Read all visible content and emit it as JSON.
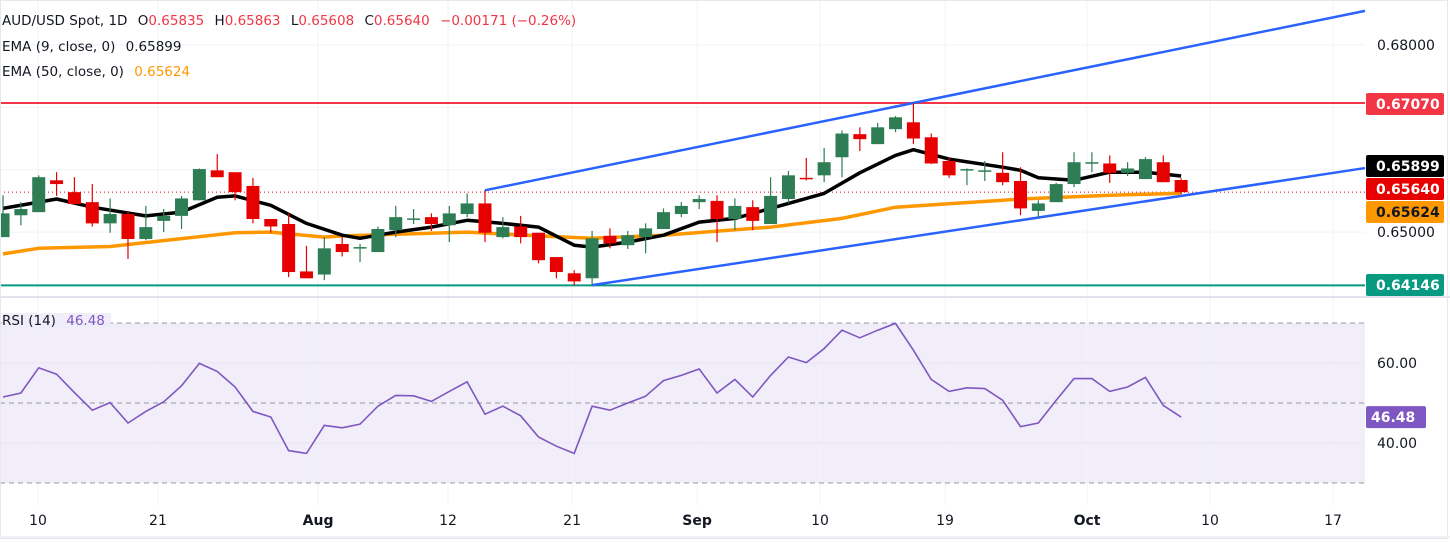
{
  "header": {
    "symbol": "AUD/USD Spot, 1D",
    "o_label": "O",
    "o": "0.65835",
    "h_label": "H",
    "h": "0.65863",
    "l_label": "L",
    "l": "0.65608",
    "c_label": "C",
    "c": "0.65640",
    "change": "−0.00171 (−0.26%)"
  },
  "ema9": {
    "label": "EMA (9, close, 0)",
    "value": "0.65899"
  },
  "ema50": {
    "label": "EMA (50, close, 0)",
    "value": "0.65624"
  },
  "rsi": {
    "label": "RSI (14)",
    "value": "46.48"
  },
  "colors": {
    "up": "#2e7d55",
    "down": "#e60000",
    "ema9": "#000000",
    "ema50": "#ff9800",
    "channel": "#2962ff",
    "resistance": "#f23645",
    "support": "#089981",
    "rsi": "#7e57c2",
    "grid": "#f0f3fa",
    "text": "#131722"
  },
  "chart_data": {
    "type": "candlestick",
    "title": "AUD/USD Spot, 1D",
    "x_range": [
      -0.17,
      76.3
    ],
    "ylim": [
      0.6396,
      0.6872
    ],
    "price_ticks": [
      {
        "label": "0.68000",
        "value": 0.68
      },
      {
        "label": "0.65000",
        "value": 0.65
      }
    ],
    "x_ticks": [
      {
        "label": "10",
        "pos": 1.96
      },
      {
        "label": "21",
        "pos": 8.68
      },
      {
        "label": "Aug",
        "pos": 17.65,
        "bold": true
      },
      {
        "label": "12",
        "pos": 24.93
      },
      {
        "label": "21",
        "pos": 31.88
      },
      {
        "label": "Sep",
        "pos": 38.88,
        "bold": true
      },
      {
        "label": "10",
        "pos": 45.77
      },
      {
        "label": "19",
        "pos": 52.77
      },
      {
        "label": "Oct",
        "pos": 60.73,
        "bold": true
      },
      {
        "label": "10",
        "pos": 67.62
      },
      {
        "label": "17",
        "pos": 74.51
      }
    ],
    "ohlc": [
      [
        0.6492,
        0.6559,
        0.6492,
        0.653
      ],
      [
        0.6527,
        0.6548,
        0.6511,
        0.6537
      ],
      [
        0.6532,
        0.6591,
        0.6532,
        0.6588
      ],
      [
        0.6583,
        0.6596,
        0.6558,
        0.6577
      ],
      [
        0.6564,
        0.6588,
        0.6545,
        0.6545
      ],
      [
        0.6548,
        0.6577,
        0.6509,
        0.6514
      ],
      [
        0.6514,
        0.6554,
        0.6499,
        0.6529
      ],
      [
        0.6529,
        0.6534,
        0.6457,
        0.6489
      ],
      [
        0.6489,
        0.6542,
        0.6487,
        0.6508
      ],
      [
        0.6518,
        0.6537,
        0.65,
        0.6526
      ],
      [
        0.6526,
        0.6558,
        0.6505,
        0.6554
      ],
      [
        0.6551,
        0.6602,
        0.6551,
        0.6601
      ],
      [
        0.6599,
        0.6625,
        0.6588,
        0.6588
      ],
      [
        0.6596,
        0.6596,
        0.6551,
        0.6564
      ],
      [
        0.6574,
        0.6587,
        0.6514,
        0.6521
      ],
      [
        0.6521,
        0.6521,
        0.6499,
        0.6509
      ],
      [
        0.6513,
        0.653,
        0.6428,
        0.6436
      ],
      [
        0.6437,
        0.6478,
        0.6426,
        0.6426
      ],
      [
        0.6432,
        0.6492,
        0.6423,
        0.6474
      ],
      [
        0.6481,
        0.6492,
        0.6461,
        0.6468
      ],
      [
        0.6474,
        0.6481,
        0.6452,
        0.6476
      ],
      [
        0.6468,
        0.6509,
        0.6468,
        0.6505
      ],
      [
        0.6503,
        0.6542,
        0.6492,
        0.6524
      ],
      [
        0.6521,
        0.6537,
        0.6513,
        0.6522
      ],
      [
        0.6524,
        0.653,
        0.6502,
        0.6513
      ],
      [
        0.6511,
        0.6542,
        0.6484,
        0.653
      ],
      [
        0.6529,
        0.6562,
        0.6524,
        0.6546
      ],
      [
        0.6546,
        0.6567,
        0.6484,
        0.6499
      ],
      [
        0.6492,
        0.6524,
        0.649,
        0.6508
      ],
      [
        0.6509,
        0.6526,
        0.6482,
        0.6492
      ],
      [
        0.6499,
        0.6499,
        0.645,
        0.6455
      ],
      [
        0.646,
        0.646,
        0.6426,
        0.6436
      ],
      [
        0.6434,
        0.6439,
        0.6415,
        0.6421
      ],
      [
        0.6426,
        0.6502,
        0.6415,
        0.649
      ],
      [
        0.6494,
        0.6506,
        0.6474,
        0.6482
      ],
      [
        0.6479,
        0.6502,
        0.6473,
        0.6495
      ],
      [
        0.6492,
        0.6514,
        0.6466,
        0.6506
      ],
      [
        0.6505,
        0.6538,
        0.6505,
        0.6532
      ],
      [
        0.6529,
        0.6548,
        0.6524,
        0.6542
      ],
      [
        0.6548,
        0.6559,
        0.6537,
        0.6553
      ],
      [
        0.655,
        0.6559,
        0.6484,
        0.6521
      ],
      [
        0.6521,
        0.6554,
        0.6503,
        0.6542
      ],
      [
        0.654,
        0.6551,
        0.6503,
        0.6518
      ],
      [
        0.6513,
        0.6588,
        0.6513,
        0.6558
      ],
      [
        0.6553,
        0.6598,
        0.6546,
        0.6591
      ],
      [
        0.6587,
        0.6619,
        0.6583,
        0.6585
      ],
      [
        0.6591,
        0.6635,
        0.658,
        0.6612
      ],
      [
        0.662,
        0.6663,
        0.6588,
        0.6658
      ],
      [
        0.6657,
        0.6668,
        0.663,
        0.6649
      ],
      [
        0.6641,
        0.6675,
        0.6641,
        0.6668
      ],
      [
        0.6665,
        0.6686,
        0.666,
        0.6684
      ],
      [
        0.6676,
        0.6707,
        0.6641,
        0.665
      ],
      [
        0.6652,
        0.6658,
        0.6609,
        0.661
      ],
      [
        0.6614,
        0.6619,
        0.6587,
        0.6591
      ],
      [
        0.6599,
        0.6602,
        0.6575,
        0.6601
      ],
      [
        0.6598,
        0.6614,
        0.6582,
        0.6599
      ],
      [
        0.6595,
        0.6628,
        0.6575,
        0.658
      ],
      [
        0.6582,
        0.6604,
        0.6527,
        0.6538
      ],
      [
        0.6534,
        0.6551,
        0.6522,
        0.6546
      ],
      [
        0.6548,
        0.6579,
        0.6548,
        0.6577
      ],
      [
        0.6577,
        0.6628,
        0.6572,
        0.6612
      ],
      [
        0.661,
        0.6628,
        0.6596,
        0.6612
      ],
      [
        0.661,
        0.6623,
        0.6579,
        0.6595
      ],
      [
        0.6595,
        0.6612,
        0.659,
        0.6602
      ],
      [
        0.6585,
        0.662,
        0.6585,
        0.6617
      ],
      [
        0.6612,
        0.6623,
        0.658,
        0.658
      ],
      [
        0.65835,
        0.65863,
        0.65608,
        0.6564
      ]
    ],
    "ema9": [
      [
        0,
        0.6538
      ],
      [
        3,
        0.6553
      ],
      [
        5,
        0.654
      ],
      [
        8,
        0.6526
      ],
      [
        10,
        0.6532
      ],
      [
        12,
        0.6556
      ],
      [
        13,
        0.6558
      ],
      [
        15,
        0.6543
      ],
      [
        17,
        0.6514
      ],
      [
        19,
        0.6495
      ],
      [
        20,
        0.649
      ],
      [
        22,
        0.65
      ],
      [
        24,
        0.6508
      ],
      [
        26,
        0.6519
      ],
      [
        28,
        0.6514
      ],
      [
        30,
        0.6508
      ],
      [
        32,
        0.6479
      ],
      [
        33,
        0.6476
      ],
      [
        35,
        0.6484
      ],
      [
        37,
        0.6495
      ],
      [
        39,
        0.6516
      ],
      [
        41,
        0.6522
      ],
      [
        43,
        0.6538
      ],
      [
        46,
        0.6562
      ],
      [
        48,
        0.6595
      ],
      [
        50,
        0.6623
      ],
      [
        51,
        0.6632
      ],
      [
        53,
        0.6617
      ],
      [
        56,
        0.6604
      ],
      [
        57,
        0.6599
      ],
      [
        58,
        0.6587
      ],
      [
        60,
        0.6583
      ],
      [
        62,
        0.6596
      ],
      [
        64,
        0.6596
      ],
      [
        66,
        0.65899
      ]
    ],
    "ema50": [
      [
        0,
        0.6465
      ],
      [
        2,
        0.6474
      ],
      [
        6,
        0.6477
      ],
      [
        13,
        0.6499
      ],
      [
        15,
        0.65
      ],
      [
        18,
        0.6492
      ],
      [
        19,
        0.6494
      ],
      [
        26,
        0.65
      ],
      [
        30,
        0.6494
      ],
      [
        33,
        0.649
      ],
      [
        37,
        0.6495
      ],
      [
        43,
        0.6508
      ],
      [
        47,
        0.6522
      ],
      [
        50,
        0.654
      ],
      [
        56,
        0.6551
      ],
      [
        57,
        0.6553
      ],
      [
        62,
        0.6559
      ],
      [
        66,
        0.65624
      ]
    ],
    "channel_upper": [
      [
        27,
        0.6567
      ],
      [
        51,
        0.6707
      ]
    ],
    "channel_lower": [
      [
        33,
        0.6415
      ],
      [
        66,
        0.6558
      ]
    ],
    "levels": [
      {
        "name": "resistance",
        "value": 0.6707,
        "label": "0.67070"
      },
      {
        "name": "support",
        "value": 0.64146,
        "label": "0.64146"
      }
    ],
    "last_price": 0.6564,
    "badges": [
      {
        "name": "resistance-badge",
        "label": "0.67070",
        "bg": "#f23645",
        "fg": "#ffffff",
        "value": 0.6707
      },
      {
        "name": "ema9-badge",
        "label": "0.65899",
        "bg": "#000000",
        "fg": "#ffffff",
        "value": 0.65899
      },
      {
        "name": "last-price-badge",
        "label": "0.65640",
        "bg": "#e60000",
        "fg": "#ffffff",
        "value": 0.6564
      },
      {
        "name": "ema50-badge",
        "label": "0.65624",
        "bg": "#ff9800",
        "fg": "#131722",
        "value": 0.65624
      },
      {
        "name": "support-badge",
        "label": "0.64146",
        "bg": "#089981",
        "fg": "#ffffff",
        "value": 0.64146
      }
    ],
    "rsi_ylim": [
      24.5,
      76.5
    ],
    "rsi_bands": [
      30,
      50,
      70
    ],
    "rsi_ticks": [
      {
        "label": "60.00",
        "value": 60
      },
      {
        "label": "40.00",
        "value": 40
      }
    ],
    "rsi_badge": {
      "label": "46.48",
      "value": 46.48,
      "bg": "#7e57c2"
    },
    "rsi_values": [
      51.5,
      52.5,
      58.8,
      57.2,
      52.6,
      48.2,
      50.1,
      45.0,
      47.9,
      50.3,
      54.3,
      59.9,
      57.9,
      54.0,
      47.9,
      46.5,
      38.1,
      37.4,
      44.4,
      43.8,
      44.7,
      49.2,
      51.9,
      51.8,
      50.4,
      52.9,
      55.3,
      47.2,
      49.2,
      46.8,
      41.5,
      39.2,
      37.4,
      49.2,
      48.2,
      50.0,
      51.7,
      55.6,
      56.9,
      58.5,
      52.5,
      55.9,
      51.5,
      56.9,
      61.5,
      60.1,
      63.6,
      68.2,
      66.3,
      68.2,
      69.9,
      63.2,
      55.9,
      52.9,
      53.8,
      53.6,
      50.7,
      44.1,
      45.0,
      50.7,
      56.1,
      56.1,
      52.9,
      54.0,
      56.4,
      49.4,
      46.48
    ]
  }
}
